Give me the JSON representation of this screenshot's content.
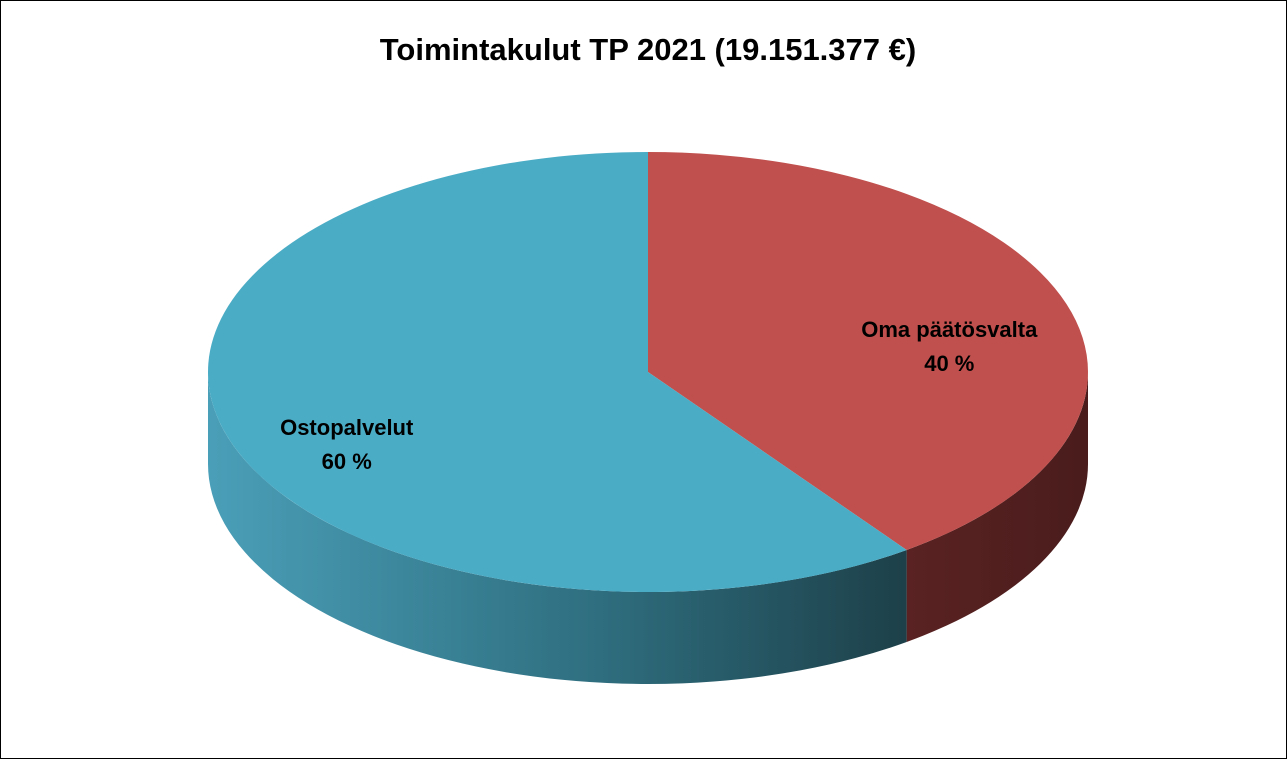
{
  "chart_data": {
    "type": "pie3d",
    "title": "Toimintakulut TP 2021 (19.151.377 €)",
    "categories": [
      "Oma päätösvalta",
      "Ostopalvelut"
    ],
    "values": [
      40,
      60
    ],
    "value_labels": [
      "40 %",
      "60 %"
    ],
    "colors": [
      "#c0504d",
      "#4bacc6"
    ]
  }
}
